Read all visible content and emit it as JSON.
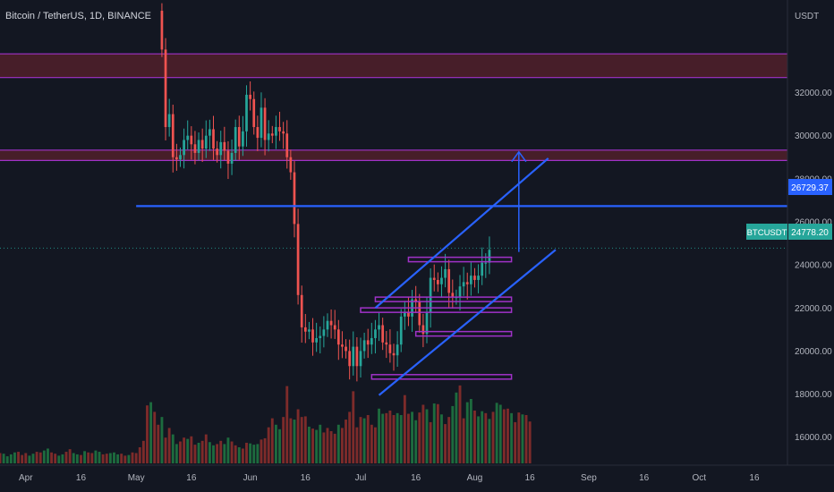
{
  "symbol": {
    "title": "Bitcoin / TetherUS, 1D, BINANCE",
    "ticker": "BTCUSDT",
    "quote_currency": "USDT"
  },
  "colors": {
    "background": "#131722",
    "up_candle": "#26a69a",
    "down_candle": "#ef5350",
    "up_volume": "#1d6b3e",
    "down_volume": "#7d2b2a",
    "zone_fill": "#4a1f2a",
    "zone_border": "#a032c8",
    "trend_line": "#2962ff",
    "axis_text": "#b2b5be",
    "price_label_bg": "#26a69a",
    "level_label_bg": "#2962ff"
  },
  "chart_data": {
    "type": "candlestick",
    "title": "Bitcoin / TetherUS, 1D, BINANCE",
    "ylabel": "USDT",
    "ylim": [
      14700,
      36300
    ],
    "y_ticks": [
      16000,
      18000,
      20000,
      22000,
      24000,
      26000,
      28000,
      30000,
      32000
    ],
    "y_tick_labels": [
      "16000.00",
      "18000.00",
      "20000.00",
      "22000.00",
      "24000.00",
      "26000.00",
      "28000.00",
      "30000.00",
      "32000.00"
    ],
    "x_range": [
      "2022-03-25",
      "2022-10-25"
    ],
    "x_ticks": [
      {
        "date": "2022-04-01",
        "label": "Apr"
      },
      {
        "date": "2022-04-16",
        "label": "16"
      },
      {
        "date": "2022-05-01",
        "label": "May"
      },
      {
        "date": "2022-05-16",
        "label": "16"
      },
      {
        "date": "2022-06-01",
        "label": "Jun"
      },
      {
        "date": "2022-06-16",
        "label": "16"
      },
      {
        "date": "2022-07-01",
        "label": "Jul"
      },
      {
        "date": "2022-07-16",
        "label": "16"
      },
      {
        "date": "2022-08-01",
        "label": "Aug"
      },
      {
        "date": "2022-08-16",
        "label": "16"
      },
      {
        "date": "2022-09-01",
        "label": "Sep"
      },
      {
        "date": "2022-09-16",
        "label": "16"
      },
      {
        "date": "2022-10-01",
        "label": "Oct"
      },
      {
        "date": "2022-10-16",
        "label": "16"
      }
    ],
    "last_price": 24778.2,
    "last_price_label": "24778.20",
    "level_label": "26729.37",
    "price_series": {
      "start": "2022-05-08",
      "closes": [
        34000,
        30400,
        31000,
        29000,
        28900,
        29100,
        29800,
        30000,
        29600,
        29200,
        29800,
        29400,
        30000,
        30300,
        29400,
        29100,
        29700,
        29300,
        28700,
        29200,
        30400,
        29500,
        30200,
        31900,
        31700,
        30400,
        29900,
        31300,
        29800,
        30100,
        30000,
        30400,
        30200,
        30100,
        29000,
        28300,
        25900,
        22600,
        21100,
        20900,
        21000,
        20400,
        20600,
        20700,
        21000,
        21400,
        21200,
        21000,
        20300,
        20200,
        20000,
        19300,
        20200,
        19300,
        20000,
        20500,
        20300,
        20600,
        21000,
        21200,
        20400,
        20300,
        19900,
        19800,
        20300,
        21600,
        21800,
        21600,
        22400,
        22300,
        21200,
        20800,
        21800,
        23400,
        23300,
        23100,
        23400,
        23800,
        22700,
        22500,
        22500,
        23000,
        23200,
        23100,
        23500,
        23300,
        23500,
        24100,
        24100,
        24700
      ]
    },
    "volumes": {
      "start": "2022-03-25",
      "values": [
        16,
        15,
        11,
        14,
        17,
        18,
        13,
        16,
        12,
        15,
        18,
        17,
        20,
        23,
        17,
        15,
        12,
        14,
        18,
        22,
        16,
        14,
        13,
        19,
        17,
        16,
        20,
        18,
        14,
        15,
        16,
        17,
        14,
        15,
        12,
        13,
        17,
        16,
        25,
        35,
        90,
        95,
        80,
        60,
        72,
        40,
        55,
        45,
        30,
        34,
        40,
        38,
        42,
        29,
        32,
        35,
        45,
        33,
        28,
        30,
        35,
        30,
        40,
        34,
        28,
        25,
        23,
        32,
        31,
        29,
        30,
        37,
        39,
        56,
        70,
        60,
        53,
        72,
        120,
        70,
        68,
        84,
        72,
        73,
        57,
        54,
        52,
        60,
        48,
        55,
        50,
        46,
        60,
        55,
        68,
        80,
        112,
        56,
        72,
        70,
        75,
        60,
        56,
        85,
        77,
        78,
        82,
        75,
        78,
        75,
        106,
        77,
        80,
        67,
        79,
        91,
        84,
        64,
        93,
        92,
        76,
        61,
        72,
        89,
        110,
        121,
        70,
        95,
        100,
        82,
        73,
        81,
        78,
        69,
        80,
        94,
        91,
        84,
        85,
        78,
        64,
        79,
        76,
        75,
        65
      ],
      "colors": [
        "down",
        "up",
        "up",
        "up",
        "up",
        "down",
        "down",
        "down",
        "up",
        "up",
        "down",
        "down",
        "up",
        "up",
        "down",
        "down",
        "up",
        "up",
        "down",
        "down",
        "up",
        "up",
        "down",
        "up",
        "down",
        "down",
        "up",
        "up",
        "down",
        "down",
        "up",
        "up",
        "up",
        "down",
        "down",
        "up",
        "down",
        "down",
        "down",
        "down",
        "down",
        "up",
        "down",
        "down",
        "up",
        "down",
        "down",
        "up",
        "up",
        "down",
        "down",
        "up",
        "down",
        "down",
        "up",
        "down",
        "down",
        "up",
        "up",
        "down",
        "down",
        "up",
        "up",
        "down",
        "down",
        "up",
        "down",
        "down",
        "up",
        "up",
        "up",
        "down",
        "down",
        "down",
        "down",
        "up",
        "up",
        "down",
        "down",
        "down",
        "up",
        "down",
        "down",
        "down",
        "up",
        "down",
        "up",
        "up",
        "down",
        "down",
        "down",
        "down",
        "up",
        "down",
        "down",
        "down",
        "down",
        "down",
        "down",
        "up",
        "down",
        "down",
        "down",
        "up",
        "up",
        "down",
        "down",
        "down",
        "up",
        "up",
        "down",
        "down",
        "up",
        "up",
        "down",
        "down",
        "up",
        "down",
        "up",
        "down",
        "up",
        "down",
        "down",
        "up",
        "up",
        "down",
        "down",
        "up",
        "up",
        "down",
        "up",
        "up",
        "down",
        "up",
        "down",
        "up",
        "up",
        "down",
        "down",
        "up",
        "down",
        "down",
        "up",
        "down",
        "down",
        "up"
      ]
    },
    "resistance_zones": [
      {
        "from": 32700,
        "to": 33800
      },
      {
        "from": 28850,
        "to": 29330
      }
    ],
    "levels": [
      {
        "price": 26729.37,
        "from_date": "2022-05-01",
        "to_date": "2022-10-25"
      }
    ],
    "channel": {
      "upper": [
        {
          "date": "2022-07-05",
          "price": 22000
        },
        {
          "date": "2022-08-21",
          "price": 28950
        }
      ],
      "lower": [
        {
          "date": "2022-07-06",
          "price": 17950
        },
        {
          "date": "2022-08-23",
          "price": 24700
        }
      ]
    },
    "arrow": {
      "date": "2022-08-13",
      "from_price": 24600,
      "to_price": 29250
    },
    "horizontal_segments": [
      {
        "price": 24250,
        "from_date": "2022-07-14",
        "to_date": "2022-08-11"
      },
      {
        "price": 22400,
        "from_date": "2022-07-05",
        "to_date": "2022-08-11"
      },
      {
        "price": 21900,
        "from_date": "2022-07-01",
        "to_date": "2022-08-11"
      },
      {
        "price": 20800,
        "from_date": "2022-07-16",
        "to_date": "2022-08-11"
      },
      {
        "price": 18800,
        "from_date": "2022-07-04",
        "to_date": "2022-08-11"
      }
    ]
  }
}
